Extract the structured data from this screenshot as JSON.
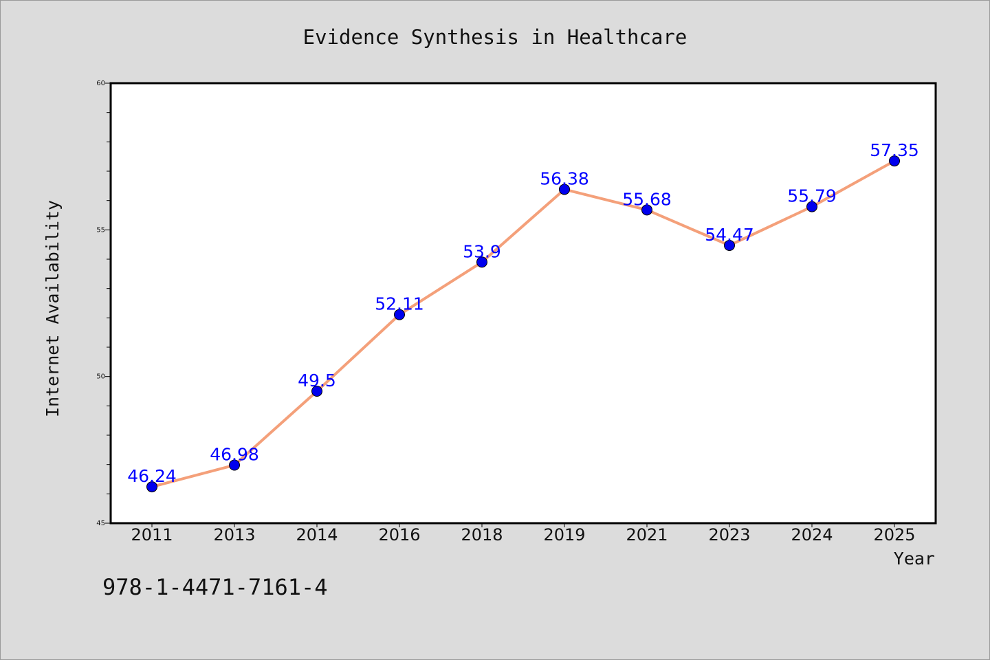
{
  "chart_data": {
    "type": "line",
    "title": "Evidence Synthesis in Healthcare",
    "xlabel": "Year",
    "ylabel": "Internet Availability",
    "categories": [
      "2011",
      "2013",
      "2014",
      "2016",
      "2018",
      "2019",
      "2021",
      "2023",
      "2024",
      "2025"
    ],
    "values": [
      46.24,
      46.98,
      49.5,
      52.11,
      53.9,
      56.38,
      55.68,
      54.47,
      55.79,
      57.35
    ],
    "data_labels": [
      "46.24",
      "46.98",
      "49.5",
      "52.11",
      "53.9",
      "56.38",
      "55.68",
      "54.47",
      "55.79",
      "57.35"
    ],
    "ylim": [
      45,
      60
    ],
    "yticks": [
      45,
      50,
      55,
      60
    ],
    "ytick_labels": [
      "45",
      "50",
      "55",
      "60"
    ],
    "grid": false,
    "legend": "none"
  },
  "footer": {
    "isbn": "978-1-4471-7161-4"
  },
  "colors": {
    "background": "#dcdcdc",
    "plot_area": "#ffffff",
    "line": "#f4a07a",
    "marker": "#0000ee",
    "data_label": "#0000ff"
  }
}
